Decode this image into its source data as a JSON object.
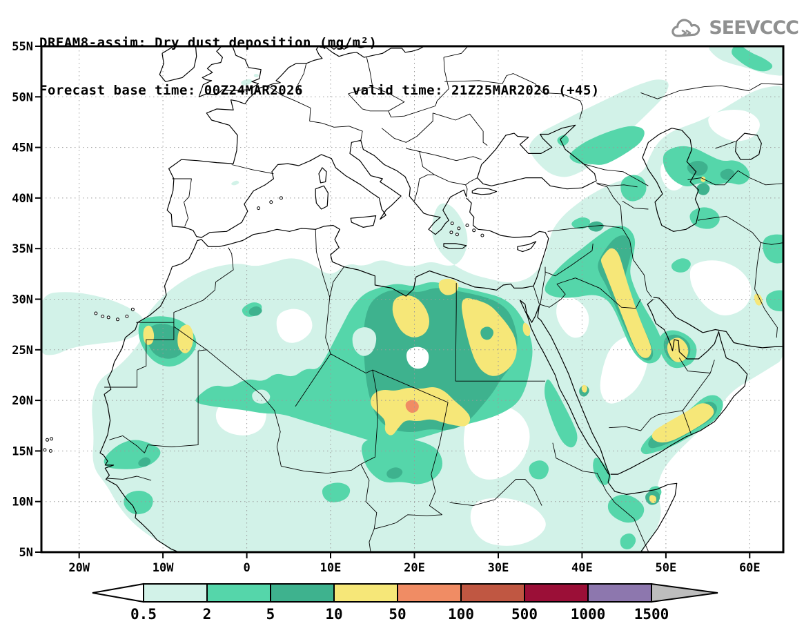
{
  "header": {
    "title_line1": "DREAM8-assim: Dry dust deposition (mg/m²)",
    "title_line2": "Forecast base time: 00Z24MAR2026      valid time: 21Z25MAR2026 (+45)"
  },
  "logo": {
    "text": "SEEVCCC"
  },
  "axes": {
    "lat_ticks": [
      "55N",
      "50N",
      "45N",
      "40N",
      "35N",
      "30N",
      "25N",
      "20N",
      "15N",
      "10N",
      "5N"
    ],
    "lon_ticks": [
      "20W",
      "10W",
      "0",
      "10E",
      "20E",
      "30E",
      "40E",
      "50E",
      "60E"
    ]
  },
  "colorbar": {
    "labels": [
      "0.5",
      "2",
      "5",
      "10",
      "50",
      "100",
      "500",
      "1000",
      "1500"
    ],
    "segment_colors": [
      "#d2f2e8",
      "#55d6aa",
      "#3eb28e",
      "#f6e778",
      "#f08c64",
      "#c05742",
      "#9b0f37",
      "#8d77ae"
    ],
    "underflow_color": "#ffffff",
    "overflow_color": "#bdbdbd"
  },
  "palette": {
    "background": "#ffffff",
    "level_0_5": "#d2f2e8",
    "level_2": "#55d6aa",
    "level_5": "#3eb28e",
    "level_10": "#f6e778",
    "level_50": "#f08c64",
    "level_100": "#c05742",
    "level_500": "#9b0f37",
    "level_1000": "#8d77ae",
    "overflow": "#bdbdbd",
    "coastline": "#000000",
    "grid": "#9a9a9a",
    "logo_gray": "#8f9090"
  },
  "chart_data": {
    "type": "filled-contour-map",
    "title": "DREAM8-assim: Dry dust deposition (mg/m²)",
    "variable": "Dry dust deposition",
    "units": "mg/m²",
    "forecast_base_time": "00Z24MAR2026",
    "valid_time": "21Z25MAR2026",
    "forecast_hour": "+45",
    "contour_levels": [
      0.5,
      2,
      5,
      10,
      50,
      100,
      500,
      1000,
      1500
    ],
    "lat_axis_range": [
      "5N",
      "55N"
    ],
    "lon_axis_range": [
      "20W",
      "60E"
    ],
    "legend_position": "bottom",
    "grid": "dotted, 5 deg latitude x 10 deg longitude"
  }
}
